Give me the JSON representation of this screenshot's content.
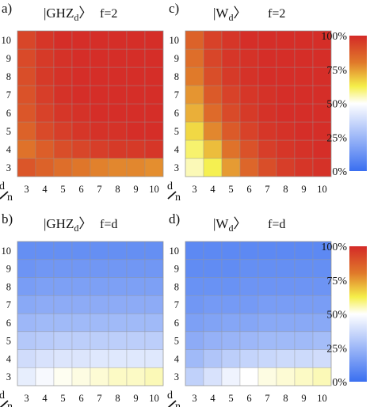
{
  "colorbar": {
    "ticks": [
      "0%",
      "25%",
      "50%",
      "75%",
      "100%"
    ],
    "colors": [
      "#3a6ff0",
      "#ffffff",
      "#f5ef4a",
      "#e07a2a",
      "#d42a28"
    ]
  },
  "axis_corner": {
    "d": "d",
    "n": "n"
  },
  "chart_data": [
    {
      "type": "heatmap",
      "panel_label": "a)",
      "state": "GHZ",
      "state_subscript": "d",
      "condition": "f=2",
      "x": [
        3,
        4,
        5,
        6,
        7,
        8,
        9,
        10
      ],
      "y": [
        3,
        4,
        5,
        6,
        7,
        8,
        9,
        10
      ],
      "xlabel": "n",
      "ylabel": "d",
      "zlim": [
        0,
        100
      ],
      "z_unit": "%",
      "z": [
        [
          89,
          86,
          83,
          81,
          79,
          78,
          78,
          77
        ],
        [
          82,
          87,
          91,
          93,
          95,
          96,
          96,
          97
        ],
        [
          86,
          92,
          95,
          97,
          98,
          98,
          99,
          99
        ],
        [
          89,
          94,
          97,
          98,
          99,
          99,
          99,
          99
        ],
        [
          90,
          95,
          98,
          99,
          99,
          99,
          99,
          99
        ],
        [
          91,
          96,
          98,
          99,
          99,
          99,
          99,
          99
        ],
        [
          92,
          96,
          98,
          99,
          99,
          99,
          99,
          99
        ],
        [
          93,
          97,
          99,
          99,
          99,
          99,
          99,
          99
        ]
      ]
    },
    {
      "type": "heatmap",
      "panel_label": "c)",
      "state": "W",
      "state_subscript": "d",
      "condition": "f=2",
      "x": [
        3,
        4,
        5,
        6,
        7,
        8,
        9,
        10
      ],
      "y": [
        3,
        4,
        5,
        6,
        7,
        8,
        9,
        10
      ],
      "xlabel": "n",
      "ylabel": "d",
      "zlim": [
        0,
        100
      ],
      "z_unit": "%",
      "z": [
        [
          55,
          62,
          75,
          85,
          91,
          95,
          97,
          98
        ],
        [
          60,
          70,
          82,
          90,
          95,
          97,
          98,
          99
        ],
        [
          66,
          78,
          88,
          94,
          97,
          98,
          99,
          99
        ],
        [
          72,
          84,
          92,
          96,
          98,
          99,
          99,
          99
        ],
        [
          76,
          88,
          94,
          97,
          98,
          99,
          99,
          99
        ],
        [
          80,
          91,
          96,
          98,
          99,
          99,
          99,
          99
        ],
        [
          83,
          93,
          97,
          98,
          99,
          99,
          99,
          99
        ],
        [
          86,
          94,
          97,
          99,
          99,
          99,
          99,
          99
        ]
      ]
    },
    {
      "type": "heatmap",
      "panel_label": "b)",
      "state": "GHZ",
      "state_subscript": "d",
      "condition": "f=d",
      "x": [
        3,
        4,
        5,
        6,
        7,
        8,
        9,
        10
      ],
      "y": [
        3,
        4,
        5,
        6,
        7,
        8,
        9,
        10
      ],
      "xlabel": "n",
      "ylabel": "d",
      "zlim": [
        0,
        100
      ],
      "z_unit": "%",
      "z": [
        [
          44,
          48,
          51,
          52,
          53,
          54,
          54,
          55
        ],
        [
          38,
          40,
          41,
          41,
          42,
          42,
          42,
          42
        ],
        [
          31,
          32,
          33,
          33,
          33,
          33,
          33,
          33
        ],
        [
          25,
          26,
          26,
          26,
          26,
          26,
          26,
          26
        ],
        [
          20,
          21,
          21,
          21,
          21,
          21,
          21,
          21
        ],
        [
          16,
          17,
          17,
          17,
          17,
          17,
          17,
          17
        ],
        [
          13,
          14,
          14,
          14,
          14,
          14,
          14,
          14
        ],
        [
          11,
          11,
          11,
          11,
          11,
          11,
          11,
          11
        ]
      ]
    },
    {
      "type": "heatmap",
      "panel_label": "d)",
      "state": "W",
      "state_subscript": "d",
      "condition": "f=d",
      "x": [
        3,
        4,
        5,
        6,
        7,
        8,
        9,
        10
      ],
      "y": [
        3,
        4,
        5,
        6,
        7,
        8,
        9,
        10
      ],
      "xlabel": "n",
      "ylabel": "d",
      "zlim": [
        0,
        100
      ],
      "z_unit": "%",
      "z": [
        [
          34,
          40,
          46,
          50,
          52,
          53,
          54,
          55
        ],
        [
          26,
          30,
          33,
          35,
          36,
          37,
          37,
          38
        ],
        [
          21,
          23,
          24,
          25,
          26,
          26,
          26,
          27
        ],
        [
          17,
          18,
          19,
          19,
          20,
          20,
          20,
          20
        ],
        [
          14,
          15,
          15,
          15,
          16,
          16,
          16,
          16
        ],
        [
          12,
          12,
          12,
          13,
          13,
          13,
          13,
          13
        ],
        [
          10,
          10,
          10,
          11,
          11,
          11,
          11,
          11
        ],
        [
          9,
          9,
          9,
          9,
          9,
          9,
          9,
          9
        ]
      ]
    }
  ]
}
